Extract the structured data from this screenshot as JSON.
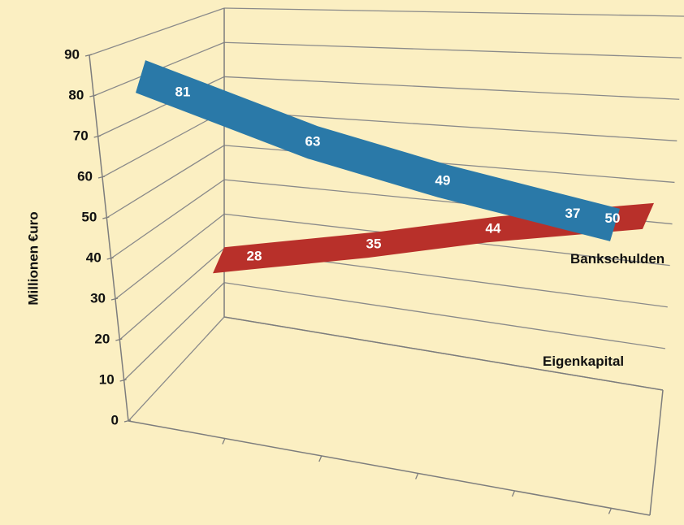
{
  "chart_data": {
    "type": "line",
    "title": "",
    "xlabel": "",
    "ylabel": "Millionen €uro",
    "ylim": [
      0,
      90
    ],
    "yticks": [
      0,
      10,
      20,
      30,
      40,
      50,
      60,
      70,
      80,
      90
    ],
    "x": [
      1,
      2,
      3,
      4
    ],
    "grid": true,
    "series": [
      {
        "name": "Eigenkapital",
        "values": [
          81,
          63,
          49,
          37
        ],
        "labels": [
          "81",
          "63",
          "49",
          "37"
        ],
        "color": "#2a79a8"
      },
      {
        "name": "Bankschulden",
        "values": [
          28,
          35,
          44,
          50
        ],
        "labels": [
          "28",
          "35",
          "44",
          "50"
        ],
        "color": "#b8302a"
      }
    ]
  }
}
